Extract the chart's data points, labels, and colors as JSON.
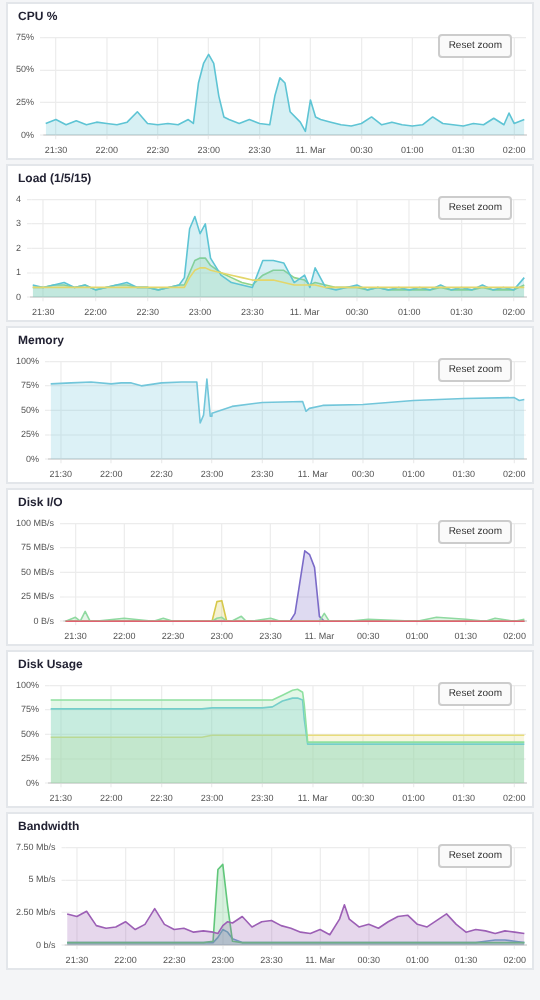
{
  "chart_data": [
    {
      "type": "area",
      "title": "CPU %",
      "annotations": [
        "Reset zoom"
      ],
      "grid": true,
      "legend": false,
      "marker": "none",
      "xlim": [
        "--03-10T21:23",
        "--03-11T02:07"
      ],
      "ylim": [
        0,
        75
      ],
      "xticks": [
        {
          "value": "--03-10T21:30",
          "label": "21:30"
        },
        {
          "value": "--03-10T22:00",
          "label": "22:00"
        },
        {
          "value": "--03-10T22:30",
          "label": "22:30"
        },
        {
          "value": "--03-10T23:00",
          "label": "23:00"
        },
        {
          "value": "--03-10T23:30",
          "label": "23:30"
        },
        {
          "value": "--03-11T00:00",
          "label": "11. Mar"
        },
        {
          "value": "--03-11T00:30",
          "label": "00:30"
        },
        {
          "value": "--03-11T01:00",
          "label": "01:00"
        },
        {
          "value": "--03-11T01:30",
          "label": "01:30"
        },
        {
          "value": "--03-11T02:00",
          "label": "02:00"
        }
      ],
      "yticks": [
        {
          "value": 0,
          "label": "0%"
        },
        {
          "value": 25,
          "label": "25%"
        },
        {
          "value": 50,
          "label": "50%"
        },
        {
          "value": 75,
          "label": "75%"
        }
      ],
      "x": [
        "--03-10T21:24",
        "--03-10T21:30",
        "--03-10T21:36",
        "--03-10T21:42",
        "--03-10T21:48",
        "--03-10T21:54",
        "--03-10T22:00",
        "--03-10T22:06",
        "--03-10T22:12",
        "--03-10T22:18",
        "--03-10T22:24",
        "--03-10T22:30",
        "--03-10T22:36",
        "--03-10T22:42",
        "--03-10T22:48",
        "--03-10T22:51",
        "--03-10T22:54",
        "--03-10T22:57",
        "--03-10T23:00",
        "--03-10T23:03",
        "--03-10T23:06",
        "--03-10T23:09",
        "--03-10T23:12",
        "--03-10T23:18",
        "--03-10T23:24",
        "--03-10T23:30",
        "--03-10T23:36",
        "--03-10T23:39",
        "--03-10T23:42",
        "--03-10T23:45",
        "--03-10T23:48",
        "--03-10T23:54",
        "--03-10T23:57",
        "--03-11T00:00",
        "--03-11T00:03",
        "--03-11T00:06",
        "--03-11T00:12",
        "--03-11T00:18",
        "--03-11T00:24",
        "--03-11T00:30",
        "--03-11T00:36",
        "--03-11T00:42",
        "--03-11T00:48",
        "--03-11T00:54",
        "--03-11T01:00",
        "--03-11T01:06",
        "--03-11T01:12",
        "--03-11T01:18",
        "--03-11T01:24",
        "--03-11T01:30",
        "--03-11T01:36",
        "--03-11T01:42",
        "--03-11T01:48",
        "--03-11T01:54",
        "--03-11T01:57",
        "--03-11T02:00",
        "--03-11T02:06"
      ],
      "series": [
        {
          "color": "#5ec4d4",
          "values": [
            9,
            12,
            8,
            11,
            8,
            10,
            9,
            8,
            10,
            18,
            9,
            8,
            9,
            8,
            12,
            9,
            40,
            55,
            62,
            55,
            30,
            14,
            12,
            9,
            12,
            9,
            8,
            30,
            44,
            40,
            18,
            10,
            3,
            27,
            14,
            12,
            10,
            8,
            7,
            9,
            14,
            8,
            10,
            8,
            7,
            8,
            14,
            9,
            8,
            7,
            9,
            8,
            13,
            8,
            17,
            9,
            12
          ]
        }
      ]
    },
    {
      "type": "area",
      "title": "Load (1/5/15)",
      "annotations": [
        "Reset zoom"
      ],
      "grid": true,
      "legend": false,
      "marker": "none",
      "xlim": [
        "--03-10T21:23",
        "--03-11T02:07"
      ],
      "ylim": [
        0,
        4
      ],
      "xticks": [
        {
          "value": "--03-10T21:30",
          "label": "21:30"
        },
        {
          "value": "--03-10T22:00",
          "label": "22:00"
        },
        {
          "value": "--03-10T22:30",
          "label": "22:30"
        },
        {
          "value": "--03-10T23:00",
          "label": "23:00"
        },
        {
          "value": "--03-10T23:30",
          "label": "23:30"
        },
        {
          "value": "--03-11T00:00",
          "label": "11. Mar"
        },
        {
          "value": "--03-11T00:30",
          "label": "00:30"
        },
        {
          "value": "--03-11T01:00",
          "label": "01:00"
        },
        {
          "value": "--03-11T01:30",
          "label": "01:30"
        },
        {
          "value": "--03-11T02:00",
          "label": "02:00"
        }
      ],
      "yticks": [
        0,
        1,
        2,
        3,
        4
      ],
      "x": [
        "--03-10T21:24",
        "--03-10T21:30",
        "--03-10T21:36",
        "--03-10T21:42",
        "--03-10T21:48",
        "--03-10T21:54",
        "--03-10T22:00",
        "--03-10T22:06",
        "--03-10T22:12",
        "--03-10T22:18",
        "--03-10T22:24",
        "--03-10T22:30",
        "--03-10T22:36",
        "--03-10T22:42",
        "--03-10T22:48",
        "--03-10T22:51",
        "--03-10T22:54",
        "--03-10T22:57",
        "--03-10T23:00",
        "--03-10T23:03",
        "--03-10T23:06",
        "--03-10T23:12",
        "--03-10T23:18",
        "--03-10T23:24",
        "--03-10T23:30",
        "--03-10T23:36",
        "--03-10T23:42",
        "--03-10T23:48",
        "--03-10T23:54",
        "--03-11T00:00",
        "--03-11T00:03",
        "--03-11T00:06",
        "--03-11T00:12",
        "--03-11T00:18",
        "--03-11T00:24",
        "--03-11T00:30",
        "--03-11T00:36",
        "--03-11T00:42",
        "--03-11T00:48",
        "--03-11T00:54",
        "--03-11T01:00",
        "--03-11T01:06",
        "--03-11T01:12",
        "--03-11T01:18",
        "--03-11T01:24",
        "--03-11T01:30",
        "--03-11T01:36",
        "--03-11T01:42",
        "--03-11T01:48",
        "--03-11T01:54",
        "--03-11T02:00",
        "--03-11T02:06"
      ],
      "series": [
        {
          "color": "#5ec4d4",
          "values": [
            0.5,
            0.4,
            0.5,
            0.6,
            0.4,
            0.5,
            0.3,
            0.4,
            0.5,
            0.6,
            0.4,
            0.4,
            0.3,
            0.4,
            0.5,
            0.8,
            2.8,
            3.3,
            2.6,
            3.0,
            1.6,
            0.9,
            0.6,
            0.5,
            0.4,
            1.5,
            1.5,
            1.4,
            0.6,
            0.9,
            0.4,
            1.2,
            0.4,
            0.3,
            0.4,
            0.5,
            0.3,
            0.4,
            0.3,
            0.4,
            0.3,
            0.4,
            0.3,
            0.5,
            0.3,
            0.4,
            0.3,
            0.5,
            0.3,
            0.4,
            0.3,
            0.8
          ]
        },
        {
          "color": "#8fd48a",
          "values": [
            0.4,
            0.4,
            0.5,
            0.5,
            0.4,
            0.5,
            0.3,
            0.4,
            0.5,
            0.5,
            0.4,
            0.4,
            0.3,
            0.4,
            0.5,
            0.5,
            1.0,
            1.5,
            1.6,
            1.6,
            1.3,
            1.0,
            0.8,
            0.6,
            0.5,
            0.9,
            1.1,
            1.1,
            0.8,
            0.7,
            0.5,
            0.6,
            0.5,
            0.4,
            0.4,
            0.4,
            0.3,
            0.4,
            0.3,
            0.3,
            0.3,
            0.3,
            0.3,
            0.4,
            0.3,
            0.3,
            0.3,
            0.4,
            0.3,
            0.3,
            0.3,
            0.5
          ]
        },
        {
          "type": "line",
          "color": "#e3d66a",
          "values": [
            0.4,
            0.4,
            0.4,
            0.4,
            0.4,
            0.4,
            0.4,
            0.4,
            0.4,
            0.4,
            0.4,
            0.4,
            0.4,
            0.4,
            0.4,
            0.4,
            0.8,
            1.1,
            1.2,
            1.2,
            1.1,
            1.0,
            0.9,
            0.8,
            0.7,
            0.7,
            0.7,
            0.6,
            0.5,
            0.5,
            0.5,
            0.5,
            0.4,
            0.4,
            0.4,
            0.4,
            0.4,
            0.4,
            0.4,
            0.4,
            0.4,
            0.4,
            0.4,
            0.4,
            0.4,
            0.4,
            0.4,
            0.4,
            0.4,
            0.4,
            0.4,
            0.4
          ]
        }
      ]
    },
    {
      "type": "area",
      "title": "Memory",
      "annotations": [
        "Reset zoom"
      ],
      "grid": true,
      "legend": false,
      "marker": "none",
      "xlim": [
        "--03-10T21:23",
        "--03-11T02:07"
      ],
      "ylim": [
        0,
        100
      ],
      "xticks": [
        {
          "value": "--03-10T21:30",
          "label": "21:30"
        },
        {
          "value": "--03-10T22:00",
          "label": "22:00"
        },
        {
          "value": "--03-10T22:30",
          "label": "22:30"
        },
        {
          "value": "--03-10T23:00",
          "label": "23:00"
        },
        {
          "value": "--03-10T23:30",
          "label": "23:30"
        },
        {
          "value": "--03-11T00:00",
          "label": "11. Mar"
        },
        {
          "value": "--03-11T00:30",
          "label": "00:30"
        },
        {
          "value": "--03-11T01:00",
          "label": "01:00"
        },
        {
          "value": "--03-11T01:30",
          "label": "01:30"
        },
        {
          "value": "--03-11T02:00",
          "label": "02:00"
        }
      ],
      "yticks": [
        {
          "value": 0,
          "label": "0%"
        },
        {
          "value": 25,
          "label": "25%"
        },
        {
          "value": 50,
          "label": "50%"
        },
        {
          "value": 75,
          "label": "75%"
        },
        {
          "value": 100,
          "label": "100%"
        }
      ],
      "x": [
        "--03-10T21:24",
        "--03-10T21:36",
        "--03-10T21:48",
        "--03-10T22:00",
        "--03-10T22:06",
        "--03-10T22:12",
        "--03-10T22:18",
        "--03-10T22:30",
        "--03-10T22:42",
        "--03-10T22:51",
        "--03-10T22:53",
        "--03-10T22:55",
        "--03-10T22:57",
        "--03-10T22:59",
        "--03-10T23:00",
        "--03-10T23:12",
        "--03-10T23:30",
        "--03-10T23:54",
        "--03-10T23:56",
        "--03-10T23:58",
        "--03-11T00:06",
        "--03-11T00:30",
        "--03-11T01:00",
        "--03-11T01:30",
        "--03-11T02:00",
        "--03-11T02:03",
        "--03-11T02:06"
      ],
      "series": [
        {
          "color": "#72c6da",
          "values": [
            77,
            78,
            79,
            77,
            78,
            78,
            75,
            78,
            79,
            79,
            37,
            45,
            82,
            44,
            47,
            54,
            58,
            59,
            49,
            52,
            55,
            56,
            60,
            62,
            63,
            60,
            61
          ]
        }
      ]
    },
    {
      "type": "area",
      "title": "Disk I/O",
      "annotations": [
        "Reset zoom"
      ],
      "grid": true,
      "legend": false,
      "marker": "none",
      "xlim": [
        "--03-10T21:23",
        "--03-11T02:07"
      ],
      "ylim": [
        0,
        100
      ],
      "xticks": [
        {
          "value": "--03-10T21:30",
          "label": "21:30"
        },
        {
          "value": "--03-10T22:00",
          "label": "22:00"
        },
        {
          "value": "--03-10T22:30",
          "label": "22:30"
        },
        {
          "value": "--03-10T23:00",
          "label": "23:00"
        },
        {
          "value": "--03-10T23:30",
          "label": "23:30"
        },
        {
          "value": "--03-11T00:00",
          "label": "11. Mar"
        },
        {
          "value": "--03-11T00:30",
          "label": "00:30"
        },
        {
          "value": "--03-11T01:00",
          "label": "01:00"
        },
        {
          "value": "--03-11T01:30",
          "label": "01:30"
        },
        {
          "value": "--03-11T02:00",
          "label": "02:00"
        }
      ],
      "yticks": [
        {
          "value": 0,
          "label": "0 B/s"
        },
        {
          "value": 25,
          "label": "25 MB/s"
        },
        {
          "value": 50,
          "label": "50 MB/s"
        },
        {
          "value": 75,
          "label": "75 MB/s"
        },
        {
          "value": 100,
          "label": "100 MB/s"
        }
      ],
      "x": [
        "--03-10T21:24",
        "--03-10T21:30",
        "--03-10T21:33",
        "--03-10T21:36",
        "--03-10T21:39",
        "--03-10T21:42",
        "--03-10T21:54",
        "--03-10T22:00",
        "--03-10T22:18",
        "--03-10T22:24",
        "--03-10T22:30",
        "--03-10T22:54",
        "--03-10T22:57",
        "--03-10T23:00",
        "--03-10T23:03",
        "--03-10T23:06",
        "--03-10T23:12",
        "--03-10T23:15",
        "--03-10T23:18",
        "--03-10T23:30",
        "--03-10T23:36",
        "--03-10T23:42",
        "--03-10T23:45",
        "--03-10T23:48",
        "--03-10T23:51",
        "--03-10T23:54",
        "--03-10T23:57",
        "--03-11T00:00",
        "--03-11T00:03",
        "--03-11T00:06",
        "--03-11T00:18",
        "--03-11T00:30",
        "--03-11T01:00",
        "--03-11T01:12",
        "--03-11T01:30",
        "--03-11T01:42",
        "--03-11T01:48",
        "--03-11T02:00",
        "--03-11T02:06"
      ],
      "series": [
        {
          "color": "#8fd9a0",
          "values": [
            0,
            4,
            0,
            10,
            0,
            0,
            2,
            3,
            0,
            3,
            0,
            0,
            3,
            4,
            0,
            0,
            5,
            0,
            0,
            3,
            0,
            0,
            0,
            0,
            0,
            0,
            0,
            0,
            8,
            0,
            0,
            2,
            0,
            4,
            2,
            0,
            3,
            0,
            2
          ]
        },
        {
          "color": "#d6c84a",
          "values": [
            0,
            0,
            0,
            0,
            0,
            0,
            0,
            0,
            0,
            0,
            0,
            0,
            20,
            21,
            0,
            0,
            0,
            0,
            0,
            0,
            0,
            0,
            0,
            0,
            0,
            0,
            0,
            0,
            0,
            0,
            0,
            0,
            0,
            0,
            0,
            0,
            0,
            0,
            0
          ]
        },
        {
          "color": "#7b6bc8",
          "values": [
            0,
            0,
            0,
            0,
            0,
            0,
            0,
            0,
            0,
            0,
            0,
            0,
            0,
            0,
            0,
            0,
            0,
            0,
            0,
            0,
            0,
            0,
            8,
            40,
            72,
            68,
            55,
            5,
            0,
            0,
            0,
            0,
            0,
            0,
            0,
            0,
            0,
            0,
            0
          ]
        },
        {
          "type": "line",
          "color": "#e06070",
          "values": [
            0,
            0,
            0,
            0,
            0,
            0,
            0,
            0,
            0,
            0,
            0,
            0,
            0,
            0,
            0,
            0,
            0,
            0,
            0,
            0,
            0,
            0,
            0,
            0,
            0,
            0,
            0,
            0,
            0,
            0,
            0,
            0,
            0,
            0,
            0,
            0,
            0,
            0,
            0
          ]
        }
      ]
    },
    {
      "type": "area",
      "title": "Disk Usage",
      "annotations": [
        "Reset zoom"
      ],
      "grid": true,
      "legend": false,
      "marker": "none",
      "xlim": [
        "--03-10T21:23",
        "--03-11T02:07"
      ],
      "ylim": [
        0,
        100
      ],
      "xticks": [
        {
          "value": "--03-10T21:30",
          "label": "21:30"
        },
        {
          "value": "--03-10T22:00",
          "label": "22:00"
        },
        {
          "value": "--03-10T22:30",
          "label": "22:30"
        },
        {
          "value": "--03-10T23:00",
          "label": "23:00"
        },
        {
          "value": "--03-10T23:30",
          "label": "23:30"
        },
        {
          "value": "--03-11T00:00",
          "label": "11. Mar"
        },
        {
          "value": "--03-11T00:30",
          "label": "00:30"
        },
        {
          "value": "--03-11T01:00",
          "label": "01:00"
        },
        {
          "value": "--03-11T01:30",
          "label": "01:30"
        },
        {
          "value": "--03-11T02:00",
          "label": "02:00"
        }
      ],
      "yticks": [
        {
          "value": 0,
          "label": "0%"
        },
        {
          "value": 25,
          "label": "25%"
        },
        {
          "value": 50,
          "label": "50%"
        },
        {
          "value": 75,
          "label": "75%"
        },
        {
          "value": 100,
          "label": "100%"
        }
      ],
      "x": [
        "--03-10T21:24",
        "--03-10T22:00",
        "--03-10T22:54",
        "--03-10T23:00",
        "--03-10T23:30",
        "--03-10T23:36",
        "--03-10T23:42",
        "--03-10T23:48",
        "--03-10T23:51",
        "--03-10T23:54",
        "--03-10T23:55",
        "--03-10T23:57",
        "--03-11T00:00",
        "--03-11T00:30",
        "--03-11T01:00",
        "--03-11T01:30",
        "--03-11T02:06"
      ],
      "series": [
        {
          "color": "#8ee0a0",
          "values": [
            85,
            85,
            85,
            85,
            85,
            85,
            90,
            95,
            96,
            93,
            80,
            42,
            42,
            42,
            42,
            42,
            42
          ]
        },
        {
          "color": "#6cc9d8",
          "values": [
            76,
            76,
            76,
            77,
            77,
            78,
            84,
            87,
            87,
            85,
            65,
            40,
            40,
            40,
            40,
            40,
            40
          ]
        },
        {
          "color": "#e8dc7a",
          "values": [
            47,
            47,
            47,
            49,
            49,
            49,
            49,
            49,
            49,
            49,
            49,
            49,
            49,
            49,
            49,
            49,
            49
          ]
        }
      ]
    },
    {
      "type": "area",
      "title": "Bandwidth",
      "annotations": [
        "Reset zoom"
      ],
      "grid": true,
      "legend": false,
      "marker": "none",
      "xlim": [
        "--03-10T21:23",
        "--03-11T02:07"
      ],
      "ylim": [
        0,
        7.5
      ],
      "xticks": [
        {
          "value": "--03-10T21:30",
          "label": "21:30"
        },
        {
          "value": "--03-10T22:00",
          "label": "22:00"
        },
        {
          "value": "--03-10T22:30",
          "label": "22:30"
        },
        {
          "value": "--03-10T23:00",
          "label": "23:00"
        },
        {
          "value": "--03-10T23:30",
          "label": "23:30"
        },
        {
          "value": "--03-11T00:00",
          "label": "11. Mar"
        },
        {
          "value": "--03-11T00:30",
          "label": "00:30"
        },
        {
          "value": "--03-11T01:00",
          "label": "01:00"
        },
        {
          "value": "--03-11T01:30",
          "label": "01:30"
        },
        {
          "value": "--03-11T02:00",
          "label": "02:00"
        }
      ],
      "yticks": [
        {
          "value": 0,
          "label": "0 b/s"
        },
        {
          "value": 2.5,
          "label": "2.50 Mb/s"
        },
        {
          "value": 5,
          "label": "5 Mb/s"
        },
        {
          "value": 7.5,
          "label": "7.50 Mb/s"
        }
      ],
      "x": [
        "--03-10T21:24",
        "--03-10T21:30",
        "--03-10T21:36",
        "--03-10T21:42",
        "--03-10T21:48",
        "--03-10T21:54",
        "--03-10T22:00",
        "--03-10T22:06",
        "--03-10T22:12",
        "--03-10T22:18",
        "--03-10T22:24",
        "--03-10T22:30",
        "--03-10T22:36",
        "--03-10T22:42",
        "--03-10T22:48",
        "--03-10T22:54",
        "--03-10T22:57",
        "--03-10T23:00",
        "--03-10T23:03",
        "--03-10T23:06",
        "--03-10T23:12",
        "--03-10T23:18",
        "--03-10T23:24",
        "--03-10T23:30",
        "--03-10T23:36",
        "--03-10T23:42",
        "--03-10T23:48",
        "--03-10T23:54",
        "--03-11T00:00",
        "--03-11T00:06",
        "--03-11T00:12",
        "--03-11T00:15",
        "--03-11T00:18",
        "--03-11T00:24",
        "--03-11T00:30",
        "--03-11T00:36",
        "--03-11T00:42",
        "--03-11T00:48",
        "--03-11T00:54",
        "--03-11T01:00",
        "--03-11T01:06",
        "--03-11T01:12",
        "--03-11T01:18",
        "--03-11T01:24",
        "--03-11T01:30",
        "--03-11T01:36",
        "--03-11T01:42",
        "--03-11T01:48",
        "--03-11T01:54",
        "--03-11T02:00",
        "--03-11T02:06"
      ],
      "series": [
        {
          "color": "#9c5fb5",
          "values": [
            2.4,
            2.2,
            2.6,
            1.5,
            1.3,
            1.4,
            1.8,
            1.2,
            1.6,
            2.8,
            1.6,
            1.2,
            1.3,
            1.0,
            1.1,
            1.0,
            0.9,
            1.5,
            1.8,
            1.7,
            2.2,
            1.4,
            1.8,
            1.9,
            1.5,
            1.3,
            1.0,
            0.9,
            1.2,
            0.8,
            2.0,
            3.1,
            2.0,
            1.4,
            1.6,
            1.3,
            1.8,
            2.2,
            2.3,
            1.6,
            1.4,
            1.9,
            2.4,
            1.6,
            1.0,
            1.2,
            1.1,
            0.9,
            1.1,
            1.0,
            0.9
          ]
        },
        {
          "color": "#60c77a",
          "values": [
            0.2,
            0.2,
            0.2,
            0.2,
            0.2,
            0.2,
            0.2,
            0.2,
            0.2,
            0.2,
            0.2,
            0.2,
            0.2,
            0.2,
            0.2,
            0.3,
            5.8,
            6.2,
            3.0,
            0.3,
            0.2,
            0.2,
            0.2,
            0.2,
            0.2,
            0.2,
            0.2,
            0.2,
            0.2,
            0.2,
            0.2,
            0.2,
            0.2,
            0.2,
            0.2,
            0.2,
            0.2,
            0.2,
            0.2,
            0.2,
            0.2,
            0.2,
            0.2,
            0.2,
            0.2,
            0.2,
            0.2,
            0.2,
            0.2,
            0.2,
            0.2
          ]
        },
        {
          "color": "#6aa0c8",
          "values": [
            0.2,
            0.2,
            0.2,
            0.2,
            0.2,
            0.2,
            0.2,
            0.2,
            0.2,
            0.2,
            0.2,
            0.2,
            0.2,
            0.2,
            0.2,
            0.2,
            0.6,
            1.2,
            1.0,
            0.5,
            0.2,
            0.2,
            0.2,
            0.2,
            0.2,
            0.2,
            0.2,
            0.2,
            0.2,
            0.2,
            0.2,
            0.2,
            0.2,
            0.2,
            0.2,
            0.2,
            0.2,
            0.2,
            0.2,
            0.2,
            0.2,
            0.2,
            0.2,
            0.2,
            0.2,
            0.2,
            0.3,
            0.4,
            0.4,
            0.3,
            0.2
          ]
        }
      ]
    }
  ]
}
